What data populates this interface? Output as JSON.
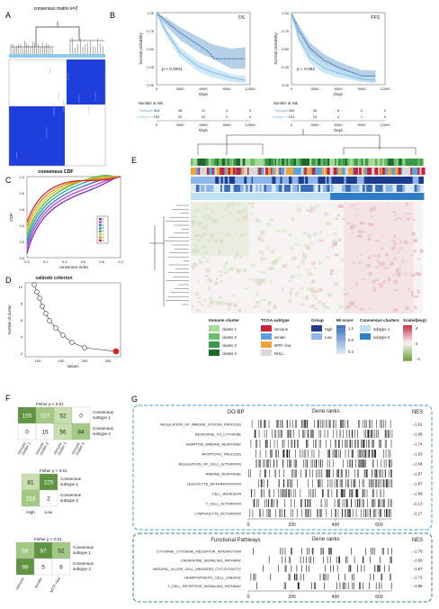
{
  "panel_letters": {
    "a": "A",
    "b": "B",
    "c": "C",
    "d": "D",
    "e": "E",
    "f": "F",
    "g": "G"
  },
  "colors": {
    "consensus_blue": "#1f3fdc",
    "survival_dark": "#2a6aa8",
    "survival_light": "#7ec0e6",
    "heat_green": "#4c8a2e",
    "heat_red": "#c2384a",
    "dashed_border": "#3f9fd6",
    "dashed_border_green": "#2f8a5a",
    "cdf_colors": [
      "#7a2ec2",
      "#c83cc0",
      "#2e6bd8",
      "#1ea0a0",
      "#49b24a",
      "#d8c41e",
      "#e08a20",
      "#d32a2a"
    ],
    "immune_cluster": [
      "#a8d89a",
      "#6bbf66",
      "#3a9a48",
      "#1e6a2e"
    ],
    "tcga_subtype": [
      "#c8233a",
      "#5aa3dc",
      "#f0a53c",
      "#d8d8d8"
    ],
    "group": [
      "#1e3a8a",
      "#8fb6e8"
    ]
  },
  "panel_a": {
    "title": "consensus matrix k=2",
    "footer": "consensus CDF"
  },
  "panel_b": {
    "os": {
      "label": "OS",
      "pvalue": "p < 0.0001",
      "ylabel": "Survival probability",
      "xlabel": "Days",
      "yticks": [
        "1.00",
        "0.75",
        "0.50",
        "0.25",
        "0.00"
      ],
      "xticks": [
        "0",
        "3000",
        "6000",
        "9000",
        "12000"
      ],
      "subtype_labels": [
        "Subtype",
        "Subtype 2"
      ],
      "risk_title": "Number at risk",
      "risk_rows": [
        [
          "304",
          "48",
          "11",
          "4",
          "0"
        ],
        [
          "150",
          "42",
          "10",
          "2",
          "0"
        ]
      ],
      "risk_xlabel": "Days"
    },
    "pfs": {
      "label": "PFS",
      "pvalue": "p = 0.062",
      "ylabel": "Survival probability",
      "xlabel": "Days",
      "yticks": [
        "1.00",
        "0.75",
        "0.50",
        "0.25",
        "0.00"
      ],
      "xticks": [
        "0",
        "3000",
        "6000",
        "9000",
        "12000"
      ],
      "subtype_labels": [
        "Subtype",
        "Subtype 2"
      ],
      "risk_title": "Number at risk",
      "risk_rows": [
        [
          "304",
          "26",
          "8",
          "2",
          "0"
        ],
        [
          "151",
          "24",
          "4",
          "1",
          "0"
        ]
      ],
      "risk_xlabel": "Days"
    }
  },
  "panel_c": {
    "ylabel": "CDF",
    "xlabel": "consensus index",
    "yticks": [
      "1.0",
      "0.8",
      "0.6",
      "0.4",
      "0.2",
      "0.0"
    ],
    "xticks": [
      "0.0",
      "0.2",
      "0.4",
      "0.6",
      "0.8",
      "1.0"
    ],
    "legend": [
      "2",
      "3",
      "4",
      "5",
      "6",
      "7",
      "8",
      "9"
    ]
  },
  "panel_d": {
    "title": "calinski criterion",
    "ylabel": "Number of cluster",
    "xlabel": "Values",
    "yticks": [
      "10",
      "8",
      "6",
      "4",
      "2"
    ],
    "xticks": [
      "100",
      "150",
      "200",
      "250"
    ]
  },
  "panel_e": {
    "legends": {
      "immune": {
        "title": "Immune cluster",
        "items": [
          "cluster 1",
          "cluster 2",
          "cluster 3",
          "cluster 4"
        ]
      },
      "tcga": {
        "title": "TCGA subtype",
        "items": [
          "immune",
          "keratin",
          "MITF−low",
          "NULL"
        ]
      },
      "group": {
        "title": "Group",
        "items": [
          "High",
          "Low"
        ]
      },
      "im": {
        "title": "IM score",
        "items": [
          "1.2",
          "0.8",
          "0.4"
        ]
      },
      "consensus": {
        "title": "Consensus clusters",
        "items": [
          "subtype 1",
          "subtype 2"
        ]
      },
      "scaled": {
        "title": "Scaled(exp)",
        "items": [
          "4",
          "0",
          "−4"
        ]
      }
    }
  },
  "panel_f": {
    "tables": [
      {
        "title": "Fisher p < 0.01",
        "cells": [
          [
            "155",
            "107",
            "52",
            "0"
          ],
          [
            "0",
            "15",
            "56",
            "84"
          ]
        ],
        "rows": [
          "Consensus subtype 1",
          "Consensus subtype 2"
        ],
        "cols": [
          "immune cluster 1",
          "immune cluster 2",
          "immune cluster 3",
          "immune cluster 4"
        ]
      },
      {
        "title": "Fisher p < 0.01",
        "cells": [
          [
            "81",
            "225"
          ],
          [
            "153",
            "2"
          ]
        ],
        "rows": [
          "Consensus subtype 1",
          "Consensus subtype 2"
        ],
        "cols": [
          "High",
          "Low"
        ]
      },
      {
        "title": "Fisher p < 0.01",
        "cells": [
          [
            "58",
            "97",
            "52"
          ],
          [
            "98",
            "5",
            "6"
          ]
        ],
        "rows": [
          "Consensus subtype 1",
          "Consensus subtype 2"
        ],
        "cols": [
          "immune",
          "keratin",
          "MITF−low"
        ]
      }
    ]
  },
  "panel_g": {
    "bp": {
      "title": "GO BP",
      "ranks_title": "Gene ranks",
      "nes_title": "NES",
      "terms": [
        {
          "name": "REGULATION_OF_IMMUNE_SYSTEM_PROCESS",
          "nes": "−1.61"
        },
        {
          "name": "RESPONSE_TO_CYTOKINE",
          "nes": "−1.68"
        },
        {
          "name": "ADAPTIVE_IMMUNE_RESPONSE",
          "nes": "−1.74"
        },
        {
          "name": "APOPTOTIC_PROCESS",
          "nes": "−1.63"
        },
        {
          "name": "REGULATION_OF_CELL_ACTIVATION",
          "nes": "−1.84"
        },
        {
          "name": "IMMUNE_RESPONSE",
          "nes": "−1.87"
        },
        {
          "name": "LEUKOCYTE_DIFFERENTIATION",
          "nes": "−1.87"
        },
        {
          "name": "CELL_ADHESION",
          "nes": "−1.96"
        },
        {
          "name": "T_CELL_ACTIVATION",
          "nes": "−2.13"
        },
        {
          "name": "LYMPHOCYTE_ACTIVATION",
          "nes": "−2.17"
        }
      ],
      "xticks": [
        "0",
        "200",
        "400",
        "600"
      ]
    },
    "fp": {
      "title": "Functional Pathways",
      "ranks_title": "Gene ranks",
      "nes_title": "NES",
      "terms": [
        {
          "name": "CYTOKINE_CYTOKINE_RECEPTOR_INTERACTION",
          "nes": "−1.76"
        },
        {
          "name": "CHEMOKINE_SIGNALING_PATHWAY",
          "nes": "−1.66"
        },
        {
          "name": "NATURAL_KILLER_CELL_MEDIATED_CYTOTOXICITY",
          "nes": "−1.67"
        },
        {
          "name": "HEMATOPOIETIC_CELL_LINEAGE",
          "nes": "−1.72"
        },
        {
          "name": "T_CELL_RECEPTOR_SIGNALING_PATHWAY",
          "nes": "−1.85"
        }
      ],
      "xticks": [
        "0",
        "200",
        "400",
        "600"
      ]
    }
  }
}
